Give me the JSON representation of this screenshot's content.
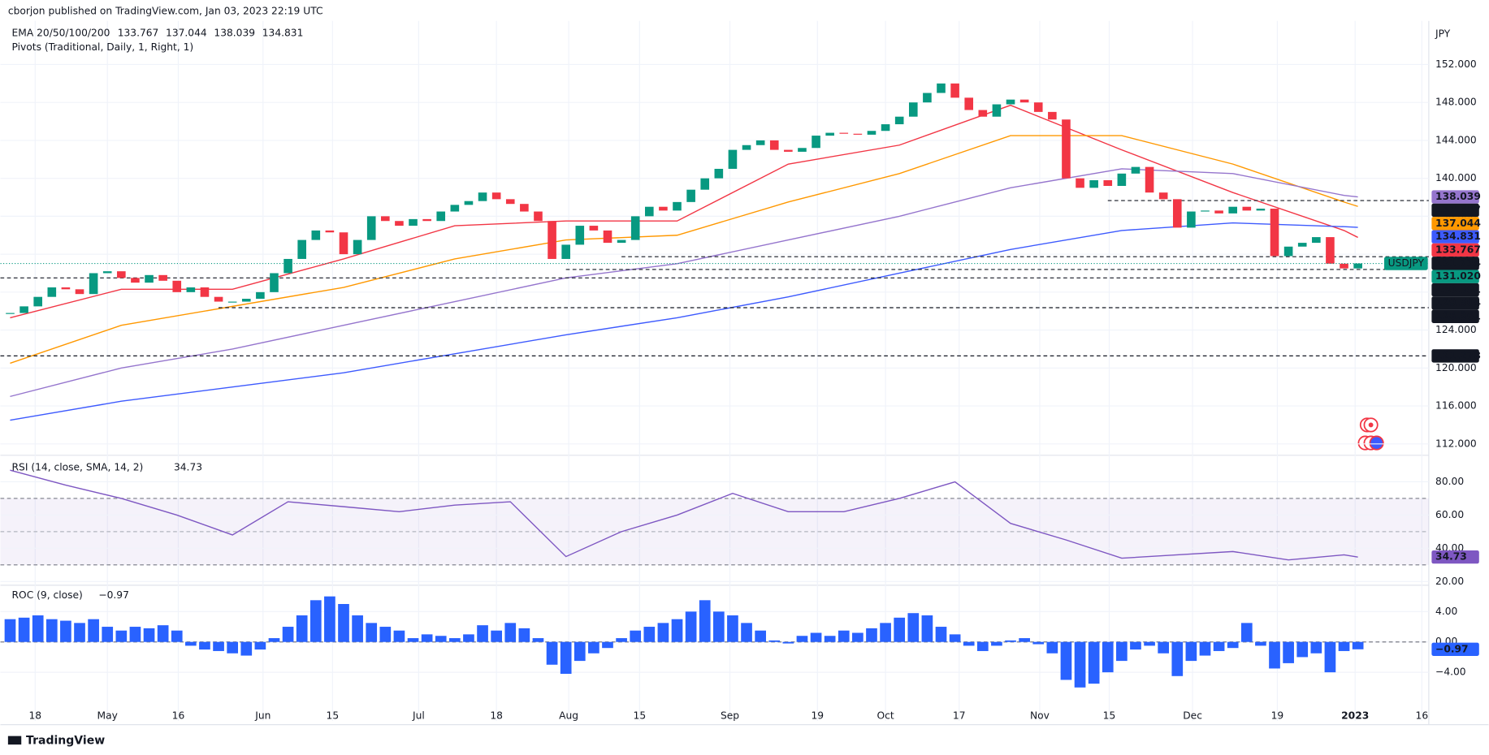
{
  "header": {
    "publisher": "cborjon published on TradingView.com, Jan 03, 2023 22:19 UTC",
    "footer": "TradingView"
  },
  "chart_data": [
    {
      "type": "candlestick",
      "title": "USDJPY",
      "currency": "JPY",
      "up_color": "#089981",
      "down_color": "#f23645",
      "close": [
        125.8,
        126.5,
        127.5,
        128.5,
        128.3,
        127.8,
        130,
        130.2,
        129.5,
        129,
        129.8,
        129.2,
        128,
        128.5,
        127.5,
        127,
        127,
        127.3,
        128,
        130,
        131.5,
        133.5,
        134.5,
        134.3,
        132,
        133.5,
        136,
        135.5,
        135,
        135.7,
        135.5,
        136.5,
        137.2,
        137.6,
        138.5,
        137.8,
        137.3,
        136.5,
        135.5,
        131.5,
        133,
        135,
        134.5,
        133.2,
        133.5,
        136,
        137,
        136.6,
        137.5,
        138.8,
        140,
        141,
        143,
        143.5,
        144,
        143,
        142.8,
        143.2,
        144.5,
        144.8,
        144.7,
        144.6,
        145,
        145.7,
        146.5,
        148,
        149,
        150,
        148.5,
        147.2,
        146.5,
        147.8,
        148.3,
        148,
        147,
        146.2,
        140,
        139,
        139.8,
        139.2,
        140.5,
        141.2,
        138.5,
        137.8,
        134.8,
        136.5,
        136.6,
        136.3,
        137,
        136.6,
        136.8,
        131.8,
        132.8,
        133.2,
        133.8,
        131,
        130.5,
        131.02
      ],
      "last_close_label": "131.020",
      "close_color": "#089981",
      "xlim": [
        -0.7,
        102.1
      ],
      "xticks": [
        {
          "value": 1.8,
          "label": "18"
        },
        {
          "value": 7,
          "label": "May"
        },
        {
          "value": 12.1,
          "label": "16"
        },
        {
          "value": 18.2,
          "label": "Jun"
        },
        {
          "value": 23.2,
          "label": "15"
        },
        {
          "value": 29.4,
          "label": "Jul"
        },
        {
          "value": 35,
          "label": "18"
        },
        {
          "value": 40.2,
          "label": "Aug"
        },
        {
          "value": 45.3,
          "label": "15"
        },
        {
          "value": 51.8,
          "label": "Sep"
        },
        {
          "value": 58.1,
          "label": "19"
        },
        {
          "value": 63,
          "label": "Oct"
        },
        {
          "value": 68.3,
          "label": "17"
        },
        {
          "value": 74.1,
          "label": "Nov"
        },
        {
          "value": 79.1,
          "label": "15"
        },
        {
          "value": 85.1,
          "label": "Dec"
        },
        {
          "value": 91.2,
          "label": "19"
        },
        {
          "value": 96.8,
          "label": "2023"
        },
        {
          "value": 101.6,
          "label": "16"
        }
      ],
      "ylim": [
        111,
        155.8
      ],
      "yticks": [
        {
          "value": 152,
          "label": "152.000"
        },
        {
          "value": 148,
          "label": "148.000"
        },
        {
          "value": 144,
          "label": "144.000"
        },
        {
          "value": 140,
          "label": "140.000"
        },
        {
          "value": 136,
          "label": "136.000"
        },
        {
          "value": 132,
          "label": "132.000"
        },
        {
          "value": 128,
          "label": "128.000"
        },
        {
          "value": 124,
          "label": "124.000"
        },
        {
          "value": 120,
          "label": "120.000"
        },
        {
          "value": 116,
          "label": "116.000"
        },
        {
          "value": 112,
          "label": "112.000"
        }
      ],
      "grid": true,
      "ema": {
        "label": "EMA 20/50/100/200",
        "x": [
          0,
          8,
          16,
          24,
          32,
          40,
          48,
          56,
          64,
          72,
          80,
          88,
          96,
          97
        ],
        "series": [
          {
            "name": "EMA 20",
            "color": "#f23645",
            "values": [
              125.3,
              128.3,
              128.3,
              131.5,
              135,
              135.5,
              135.5,
              141.5,
              143.5,
              147.7,
              143,
              138.5,
              134.5,
              133.767
            ]
          },
          {
            "name": "EMA 50",
            "color": "#ff9800",
            "values": [
              120.5,
              124.5,
              126.5,
              128.5,
              131.5,
              133.5,
              134,
              137.5,
              140.5,
              144.5,
              144.5,
              141.5,
              137.5,
              137.044
            ]
          },
          {
            "name": "EMA 100",
            "color": "#9575cd",
            "values": [
              117,
              120,
              122,
              124.5,
              127,
              129.5,
              131,
              133.5,
              136,
              139,
              141,
              140.5,
              138.2,
              138.039
            ]
          },
          {
            "name": "EMA 200",
            "color": "#3d5afe",
            "values": [
              114.5,
              116.5,
              118,
              119.5,
              121.5,
              123.5,
              125.3,
              127.5,
              130,
              132.5,
              134.5,
              135.3,
              134.9,
              134.831
            ]
          }
        ]
      },
      "pivots": {
        "label": "Pivots (Traditional, Daily, 1, Right, 1)",
        "levels": [
          {
            "value": 137.657,
            "start": 79
          },
          {
            "value": 131.734,
            "start": 44
          },
          {
            "value": 130.391,
            "start": 40
          },
          {
            "value": 129.504,
            "start": -0.7
          },
          {
            "value": 126.361,
            "start": 15
          },
          {
            "value": 121.278,
            "start": -0.7
          }
        ]
      }
    },
    {
      "type": "line",
      "title": "RSI (14, close, SMA, 14, 2)",
      "color": "#7e57c2",
      "x": [
        0,
        4,
        8,
        12,
        16,
        20,
        24,
        28,
        32,
        36,
        40,
        44,
        48,
        52,
        56,
        60,
        64,
        68,
        72,
        76,
        80,
        84,
        88,
        92,
        96,
        97
      ],
      "values": [
        87,
        78,
        70,
        60,
        48,
        68,
        65,
        62,
        66,
        68,
        35,
        50,
        60,
        73,
        62,
        62,
        70,
        80,
        55,
        45,
        34,
        36,
        38,
        33,
        36,
        34.73
      ],
      "band": [
        30,
        70
      ],
      "midline": 50,
      "ylim": [
        18.9,
        93.1
      ],
      "yticks": [
        {
          "value": 80,
          "label": "80.00"
        },
        {
          "value": 60,
          "label": "60.00"
        },
        {
          "value": 40,
          "label": "40.00"
        },
        {
          "value": 20,
          "label": "20.00"
        }
      ]
    },
    {
      "type": "bar",
      "title": "ROC (9, close)",
      "color": "#2962ff",
      "values": [
        3,
        3.2,
        3.5,
        3,
        2.8,
        2.5,
        3,
        2,
        1.5,
        2,
        1.8,
        2.2,
        1.5,
        -0.5,
        -1,
        -1.2,
        -1.5,
        -1.8,
        -1,
        0.5,
        2,
        3.5,
        5.5,
        6,
        5,
        3.5,
        2.5,
        2,
        1.5,
        0.5,
        1,
        0.8,
        0.5,
        1,
        2.2,
        1.5,
        2.5,
        1.8,
        0.5,
        -3,
        -4.2,
        -2.5,
        -1.5,
        -0.8,
        0.5,
        1.5,
        2,
        2.5,
        3,
        4,
        5.5,
        4,
        3.5,
        2.5,
        1.5,
        0.2,
        -0.2,
        0.8,
        1.2,
        0.8,
        1.5,
        1.2,
        1.8,
        2.5,
        3.2,
        3.8,
        3.5,
        2,
        1,
        -0.5,
        -1.2,
        -0.5,
        0.2,
        0.5,
        -0.3,
        -1.5,
        -5,
        -6,
        -5.5,
        -4,
        -2.5,
        -1,
        -0.5,
        -1.5,
        -4.5,
        -2.5,
        -1.8,
        -1.2,
        -0.8,
        2.5,
        -0.5,
        -3.5,
        -2.8,
        -2,
        -1.5,
        -4,
        -1.2,
        -0.97
      ],
      "last_value_label": "−0.97",
      "ylim": [
        -10.4,
        7.1
      ],
      "yticks": [
        {
          "value": 4,
          "label": "4.00"
        },
        {
          "value": 0,
          "label": "0.00"
        },
        {
          "value": -4,
          "label": "−4.00"
        }
      ]
    }
  ]
}
